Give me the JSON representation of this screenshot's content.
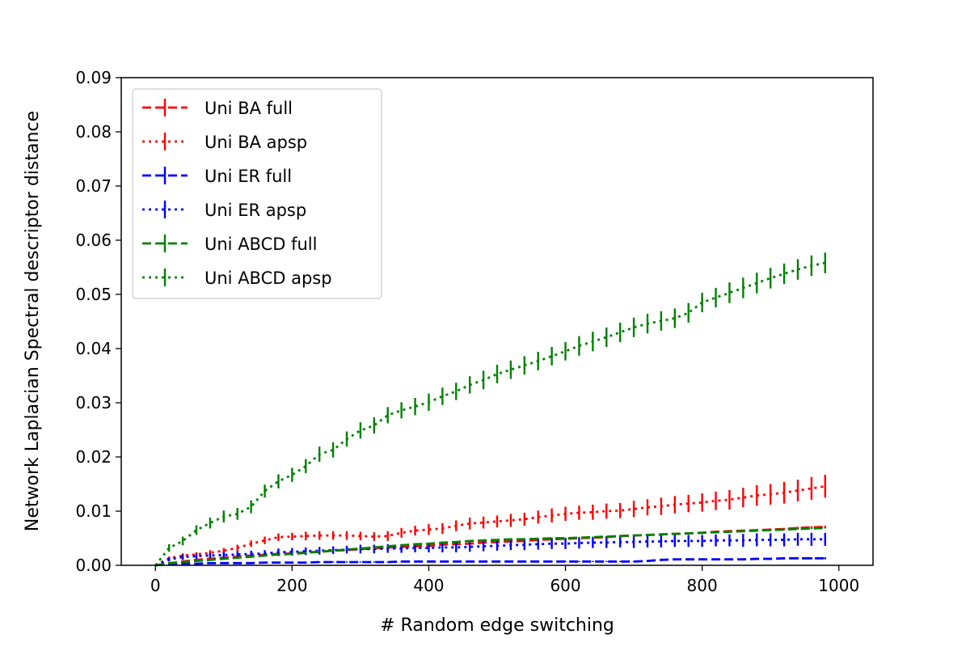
{
  "chart_data": {
    "type": "line",
    "title": "",
    "xlabel": "# Random edge switching",
    "ylabel": "Network Laplacian Spectral descriptor distance",
    "xlim": [
      -50,
      1050
    ],
    "ylim": [
      0,
      0.09
    ],
    "xticks": [
      0,
      200,
      400,
      600,
      800,
      1000
    ],
    "yticks": [
      0.0,
      0.01,
      0.02,
      0.03,
      0.04,
      0.05,
      0.06,
      0.07,
      0.08,
      0.09
    ],
    "xtick_labels": [
      "0",
      "200",
      "400",
      "600",
      "800",
      "1000"
    ],
    "ytick_labels": [
      "0.00",
      "0.01",
      "0.02",
      "0.03",
      "0.04",
      "0.05",
      "0.06",
      "0.07",
      "0.08",
      "0.09"
    ],
    "grid": false,
    "legend_position": "top-left",
    "x_start": 0,
    "x_step": 20,
    "series": [
      {
        "name": "Uni BA full",
        "color": "#ff0000",
        "linestyle": "dashed",
        "values": [
          0,
          0.00035,
          0.0007,
          0.001,
          0.0012,
          0.0014,
          0.0016,
          0.0018,
          0.00195,
          0.0021,
          0.0022,
          0.0024,
          0.0025,
          0.0027,
          0.0028,
          0.003,
          0.0031,
          0.0033,
          0.0034,
          0.0035,
          0.0036,
          0.0038,
          0.0039,
          0.004,
          0.0042,
          0.0043,
          0.0044,
          0.0045,
          0.0047,
          0.0048,
          0.0049,
          0.005,
          0.0051,
          0.0052,
          0.0054,
          0.0055,
          0.0056,
          0.0057,
          0.0058,
          0.0059,
          0.006,
          0.0062,
          0.0063,
          0.0064,
          0.0065,
          0.0066,
          0.0067,
          0.0069,
          0.007,
          0.0071
        ],
        "errors": [
          0,
          0.0001,
          0.0001,
          0.0001,
          0.0001,
          0.0001,
          0.0001,
          0.0001,
          0.0002,
          0.0002,
          0.0002,
          0.0002,
          0.0002,
          0.0002,
          0.0002,
          0.0002,
          0.0002,
          0.0002,
          0.0002,
          0.0002,
          0.0002,
          0.0002,
          0.0002,
          0.0002,
          0.0002,
          0.0002,
          0.0002,
          0.0002,
          0.0002,
          0.0002,
          0.0002,
          0.0002,
          0.0002,
          0.0002,
          0.0002,
          0.0002,
          0.0002,
          0.0002,
          0.0002,
          0.0002,
          0.0002,
          0.0002,
          0.0002,
          0.0002,
          0.0002,
          0.0002,
          0.0002,
          0.0002,
          0.0002,
          0.0002
        ]
      },
      {
        "name": "Uni BA apsp",
        "color": "#ff0000",
        "linestyle": "dotted",
        "values": [
          0,
          0.0013,
          0.0018,
          0.002,
          0.0023,
          0.0027,
          0.0032,
          0.004,
          0.0046,
          0.0052,
          0.0053,
          0.0054,
          0.0055,
          0.0055,
          0.0055,
          0.0054,
          0.0053,
          0.0054,
          0.006,
          0.0064,
          0.0066,
          0.0068,
          0.0073,
          0.0077,
          0.0079,
          0.0081,
          0.0083,
          0.0085,
          0.0089,
          0.0092,
          0.0095,
          0.0097,
          0.0098,
          0.01,
          0.0101,
          0.0104,
          0.0107,
          0.0109,
          0.0112,
          0.0114,
          0.0116,
          0.0119,
          0.0121,
          0.0125,
          0.0129,
          0.0131,
          0.0134,
          0.0138,
          0.0142,
          0.0146
        ],
        "errors": [
          0,
          0.0003,
          0.0004,
          0.0004,
          0.0005,
          0.0005,
          0.0006,
          0.0006,
          0.0007,
          0.0007,
          0.0007,
          0.0008,
          0.0008,
          0.0008,
          0.0008,
          0.0008,
          0.0008,
          0.0009,
          0.0009,
          0.0009,
          0.001,
          0.001,
          0.001,
          0.0011,
          0.0011,
          0.0011,
          0.0012,
          0.0012,
          0.0012,
          0.0013,
          0.0013,
          0.0013,
          0.0014,
          0.0014,
          0.0014,
          0.0015,
          0.0015,
          0.0016,
          0.0016,
          0.0016,
          0.0017,
          0.0017,
          0.0018,
          0.0018,
          0.0019,
          0.0019,
          0.002,
          0.002,
          0.0021,
          0.0021
        ]
      },
      {
        "name": "Uni ER full",
        "color": "#0000ff",
        "linestyle": "dashed",
        "values": [
          0,
          0.0002,
          0.0003,
          0.0003,
          0.0004,
          0.0004,
          0.0004,
          0.0004,
          0.0005,
          0.0005,
          0.0005,
          0.0005,
          0.0006,
          0.0006,
          0.0006,
          0.0006,
          0.0006,
          0.0006,
          0.0007,
          0.0007,
          0.0007,
          0.0007,
          0.0007,
          0.0007,
          0.0007,
          0.0007,
          0.0007,
          0.0007,
          0.0007,
          0.0007,
          0.0007,
          0.0007,
          0.0007,
          0.0007,
          0.0007,
          0.0007,
          0.0008,
          0.001,
          0.0011,
          0.0011,
          0.0011,
          0.0011,
          0.0011,
          0.0011,
          0.0012,
          0.0012,
          0.0013,
          0.0013,
          0.0013,
          0.0013
        ],
        "errors": [
          0,
          0.0001,
          0.0001,
          0.0001,
          0.0001,
          0.0001,
          0.0001,
          0.0001,
          0.0001,
          0.0001,
          0.0001,
          0.0001,
          0.0001,
          0.0001,
          0.0001,
          0.0001,
          0.0001,
          0.0001,
          0.0001,
          0.0001,
          0.0001,
          0.0001,
          0.0001,
          0.0001,
          0.0001,
          0.0001,
          0.0001,
          0.0001,
          0.0001,
          0.0001,
          0.0001,
          0.0001,
          0.0001,
          0.0001,
          0.0001,
          0.0001,
          0.0001,
          0.0002,
          0.0002,
          0.0002,
          0.0002,
          0.0002,
          0.0002,
          0.0002,
          0.0002,
          0.0002,
          0.0002,
          0.0002,
          0.0002,
          0.0002
        ]
      },
      {
        "name": "Uni ER apsp",
        "color": "#0000ff",
        "linestyle": "dotted",
        "values": [
          0,
          0.0011,
          0.0015,
          0.0017,
          0.0018,
          0.0019,
          0.002,
          0.0021,
          0.0022,
          0.0024,
          0.0025,
          0.0026,
          0.0027,
          0.0028,
          0.0029,
          0.003,
          0.003,
          0.0031,
          0.0031,
          0.0032,
          0.0032,
          0.0033,
          0.0033,
          0.0034,
          0.0035,
          0.0036,
          0.0037,
          0.0038,
          0.0039,
          0.004,
          0.004,
          0.0041,
          0.0042,
          0.0042,
          0.0043,
          0.0043,
          0.0044,
          0.0044,
          0.0045,
          0.0045,
          0.0045,
          0.0046,
          0.0046,
          0.0046,
          0.0047,
          0.0047,
          0.0047,
          0.0048,
          0.0048,
          0.0048
        ],
        "errors": [
          0,
          0.0004,
          0.0005,
          0.0005,
          0.0005,
          0.0006,
          0.0006,
          0.0006,
          0.0006,
          0.0007,
          0.0007,
          0.0007,
          0.0007,
          0.0007,
          0.0007,
          0.0008,
          0.0008,
          0.0008,
          0.0008,
          0.0008,
          0.0008,
          0.0009,
          0.0009,
          0.0009,
          0.0009,
          0.0009,
          0.0009,
          0.001,
          0.001,
          0.001,
          0.001,
          0.001,
          0.001,
          0.001,
          0.001,
          0.0011,
          0.0011,
          0.0011,
          0.0011,
          0.0011,
          0.0011,
          0.0011,
          0.0011,
          0.0012,
          0.0012,
          0.0012,
          0.0012,
          0.0012,
          0.0012,
          0.0012
        ]
      },
      {
        "name": "Uni ABCD full",
        "color": "#008000",
        "linestyle": "dashed",
        "values": [
          0,
          0.0004,
          0.0006,
          0.0008,
          0.001,
          0.0012,
          0.0014,
          0.0016,
          0.0018,
          0.002,
          0.0021,
          0.0023,
          0.0025,
          0.0027,
          0.0029,
          0.0031,
          0.0033,
          0.0035,
          0.0037,
          0.0039,
          0.004,
          0.0042,
          0.0043,
          0.0045,
          0.0046,
          0.0047,
          0.0048,
          0.0048,
          0.0049,
          0.005,
          0.005,
          0.0051,
          0.0052,
          0.0053,
          0.0054,
          0.0055,
          0.0056,
          0.0057,
          0.0058,
          0.0059,
          0.006,
          0.0061,
          0.0062,
          0.0063,
          0.0064,
          0.0065,
          0.0066,
          0.0067,
          0.0068,
          0.0069
        ],
        "errors": [
          0,
          0.0001,
          0.0001,
          0.0001,
          0.0001,
          0.0001,
          0.0001,
          0.0001,
          0.0001,
          0.0001,
          0.0001,
          0.0001,
          0.0001,
          0.0001,
          0.0001,
          0.0001,
          0.0001,
          0.0001,
          0.0001,
          0.0001,
          0.0001,
          0.0001,
          0.0001,
          0.0001,
          0.0001,
          0.0001,
          0.0001,
          0.0001,
          0.0001,
          0.0001,
          0.0001,
          0.0001,
          0.0001,
          0.0001,
          0.0001,
          0.0001,
          0.0001,
          0.0001,
          0.0001,
          0.0001,
          0.0001,
          0.0001,
          0.0001,
          0.0001,
          0.0001,
          0.0001,
          0.0001,
          0.0001,
          0.0001,
          0.0001
        ]
      },
      {
        "name": "Uni ABCD apsp",
        "color": "#008000",
        "linestyle": "dotted",
        "values": [
          0,
          0.0032,
          0.0045,
          0.0065,
          0.0078,
          0.009,
          0.0095,
          0.0108,
          0.0137,
          0.0155,
          0.0167,
          0.0183,
          0.0205,
          0.0213,
          0.0233,
          0.0249,
          0.0258,
          0.0277,
          0.0286,
          0.0293,
          0.0301,
          0.0312,
          0.0321,
          0.0333,
          0.0342,
          0.0353,
          0.0361,
          0.0369,
          0.0377,
          0.0386,
          0.0395,
          0.0405,
          0.0413,
          0.0421,
          0.043,
          0.0439,
          0.0446,
          0.0451,
          0.0456,
          0.0466,
          0.0485,
          0.0494,
          0.0503,
          0.0512,
          0.0521,
          0.053,
          0.0538,
          0.0546,
          0.0553,
          0.0558
        ],
        "errors": [
          0,
          0.0007,
          0.0008,
          0.0009,
          0.001,
          0.0011,
          0.0011,
          0.0012,
          0.0012,
          0.0013,
          0.0013,
          0.0013,
          0.0014,
          0.0014,
          0.0014,
          0.0015,
          0.0015,
          0.0015,
          0.0015,
          0.0016,
          0.0016,
          0.0016,
          0.0016,
          0.0016,
          0.0017,
          0.0017,
          0.0017,
          0.0017,
          0.0017,
          0.0017,
          0.0017,
          0.0018,
          0.0018,
          0.0018,
          0.0018,
          0.0018,
          0.0018,
          0.0018,
          0.0018,
          0.0018,
          0.0018,
          0.0018,
          0.0019,
          0.0019,
          0.0019,
          0.0019,
          0.0019,
          0.0019,
          0.0019,
          0.0019
        ]
      }
    ]
  }
}
